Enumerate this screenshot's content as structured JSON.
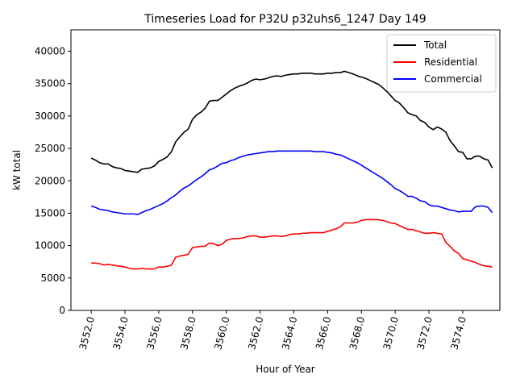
{
  "chart_data": {
    "type": "line",
    "title": "Timeseries Load for P32U p32uhs6_1247  Day 149",
    "xlabel": "Hour of Year",
    "ylabel": "kW total",
    "xlim": [
      3550.8,
      3576.2
    ],
    "ylim": [
      0,
      43300
    ],
    "xticks": [
      3552,
      3554,
      3556,
      3558,
      3560,
      3562,
      3564,
      3566,
      3568,
      3570,
      3572,
      3574
    ],
    "xtick_labels": [
      "3552.0",
      "3554.0",
      "3556.0",
      "3558.0",
      "3560.0",
      "3562.0",
      "3564.0",
      "3566.0",
      "3568.0",
      "3570.0",
      "3572.0",
      "3574.0"
    ],
    "yticks": [
      0,
      5000,
      10000,
      15000,
      20000,
      25000,
      30000,
      35000,
      40000
    ],
    "ytick_labels": [
      "0",
      "5000",
      "10000",
      "15000",
      "20000",
      "25000",
      "30000",
      "35000",
      "40000"
    ],
    "legend_position": "top-right",
    "x": [
      3552.0,
      3552.25,
      3552.5,
      3552.75,
      3553.0,
      3553.25,
      3553.5,
      3553.75,
      3554.0,
      3554.25,
      3554.5,
      3554.75,
      3555.0,
      3555.25,
      3555.5,
      3555.75,
      3556.0,
      3556.25,
      3556.5,
      3556.75,
      3557.0,
      3557.25,
      3557.5,
      3557.75,
      3558.0,
      3558.25,
      3558.5,
      3558.75,
      3559.0,
      3559.25,
      3559.5,
      3559.75,
      3560.0,
      3560.25,
      3560.5,
      3560.75,
      3561.0,
      3561.25,
      3561.5,
      3561.75,
      3562.0,
      3562.25,
      3562.5,
      3562.75,
      3563.0,
      3563.25,
      3563.5,
      3563.75,
      3564.0,
      3564.25,
      3564.5,
      3564.75,
      3565.0,
      3565.25,
      3565.5,
      3565.75,
      3566.0,
      3566.25,
      3566.5,
      3566.75,
      3567.0,
      3567.25,
      3567.5,
      3567.75,
      3568.0,
      3568.25,
      3568.5,
      3568.75,
      3569.0,
      3569.25,
      3569.5,
      3569.75,
      3570.0,
      3570.25,
      3570.5,
      3570.75,
      3571.0,
      3571.25,
      3571.5,
      3571.75,
      3572.0,
      3572.25,
      3572.5,
      3572.75,
      3573.0,
      3573.25,
      3573.5,
      3573.75,
      3574.0,
      3574.25,
      3574.5,
      3574.75,
      3575.0,
      3575.25,
      3575.5,
      3575.75
    ],
    "series": [
      {
        "name": "Total",
        "color": "#000000",
        "values": [
          23500,
          23200,
          22800,
          22600,
          22600,
          22200,
          22000,
          21900,
          21600,
          21500,
          21400,
          21300,
          21800,
          21900,
          22000,
          22300,
          23000,
          23300,
          23700,
          24500,
          26000,
          26800,
          27500,
          28000,
          29500,
          30200,
          30600,
          31200,
          32300,
          32400,
          32400,
          32900,
          33400,
          33900,
          34300,
          34600,
          34800,
          35100,
          35500,
          35700,
          35600,
          35700,
          35900,
          36100,
          36200,
          36100,
          36300,
          36400,
          36500,
          36500,
          36600,
          36600,
          36600,
          36500,
          36500,
          36500,
          36600,
          36600,
          36700,
          36700,
          36900,
          36700,
          36500,
          36200,
          36000,
          35800,
          35500,
          35200,
          34900,
          34400,
          33800,
          33100,
          32400,
          32000,
          31300,
          30500,
          30200,
          30000,
          29300,
          29000,
          28300,
          27900,
          28300,
          28000,
          27500,
          26200,
          25400,
          24500,
          24400,
          23400,
          23400,
          23800,
          23800,
          23400,
          23200,
          22000
        ]
      },
      {
        "name": "Residential",
        "color": "#ff0000",
        "values": [
          7300,
          7300,
          7200,
          7000,
          7100,
          7000,
          6900,
          6800,
          6700,
          6500,
          6400,
          6400,
          6500,
          6400,
          6400,
          6400,
          6700,
          6700,
          6800,
          7000,
          8200,
          8400,
          8500,
          8700,
          9700,
          9800,
          9900,
          9900,
          10400,
          10300,
          10000,
          10200,
          10800,
          11000,
          11100,
          11100,
          11200,
          11400,
          11500,
          11500,
          11300,
          11300,
          11400,
          11500,
          11500,
          11400,
          11500,
          11700,
          11800,
          11800,
          11900,
          11900,
          12000,
          12000,
          12000,
          12000,
          12200,
          12400,
          12600,
          12900,
          13500,
          13500,
          13500,
          13600,
          13900,
          14000,
          14000,
          14000,
          14000,
          13900,
          13700,
          13500,
          13400,
          13100,
          12800,
          12500,
          12500,
          12300,
          12100,
          11900,
          11900,
          12000,
          11900,
          11800,
          10500,
          9900,
          9200,
          8800,
          8000,
          7800,
          7600,
          7400,
          7100,
          6900,
          6800,
          6700
        ]
      },
      {
        "name": "Commercial",
        "color": "#0000ff",
        "values": [
          16100,
          15900,
          15600,
          15500,
          15400,
          15200,
          15100,
          15000,
          14900,
          14900,
          14900,
          14800,
          15100,
          15400,
          15600,
          15900,
          16200,
          16500,
          16900,
          17400,
          17800,
          18400,
          18900,
          19200,
          19700,
          20200,
          20600,
          21100,
          21700,
          21900,
          22300,
          22700,
          22800,
          23100,
          23300,
          23600,
          23800,
          24000,
          24100,
          24200,
          24300,
          24400,
          24500,
          24500,
          24600,
          24600,
          24600,
          24600,
          24600,
          24600,
          24600,
          24600,
          24600,
          24500,
          24500,
          24500,
          24400,
          24300,
          24100,
          24000,
          23700,
          23400,
          23100,
          22800,
          22400,
          22000,
          21600,
          21200,
          20800,
          20400,
          19900,
          19400,
          18800,
          18500,
          18100,
          17600,
          17600,
          17300,
          16900,
          16800,
          16300,
          16100,
          16100,
          15900,
          15700,
          15500,
          15400,
          15200,
          15300,
          15300,
          15300,
          16000,
          16100,
          16100,
          15900,
          15100
        ]
      }
    ]
  }
}
